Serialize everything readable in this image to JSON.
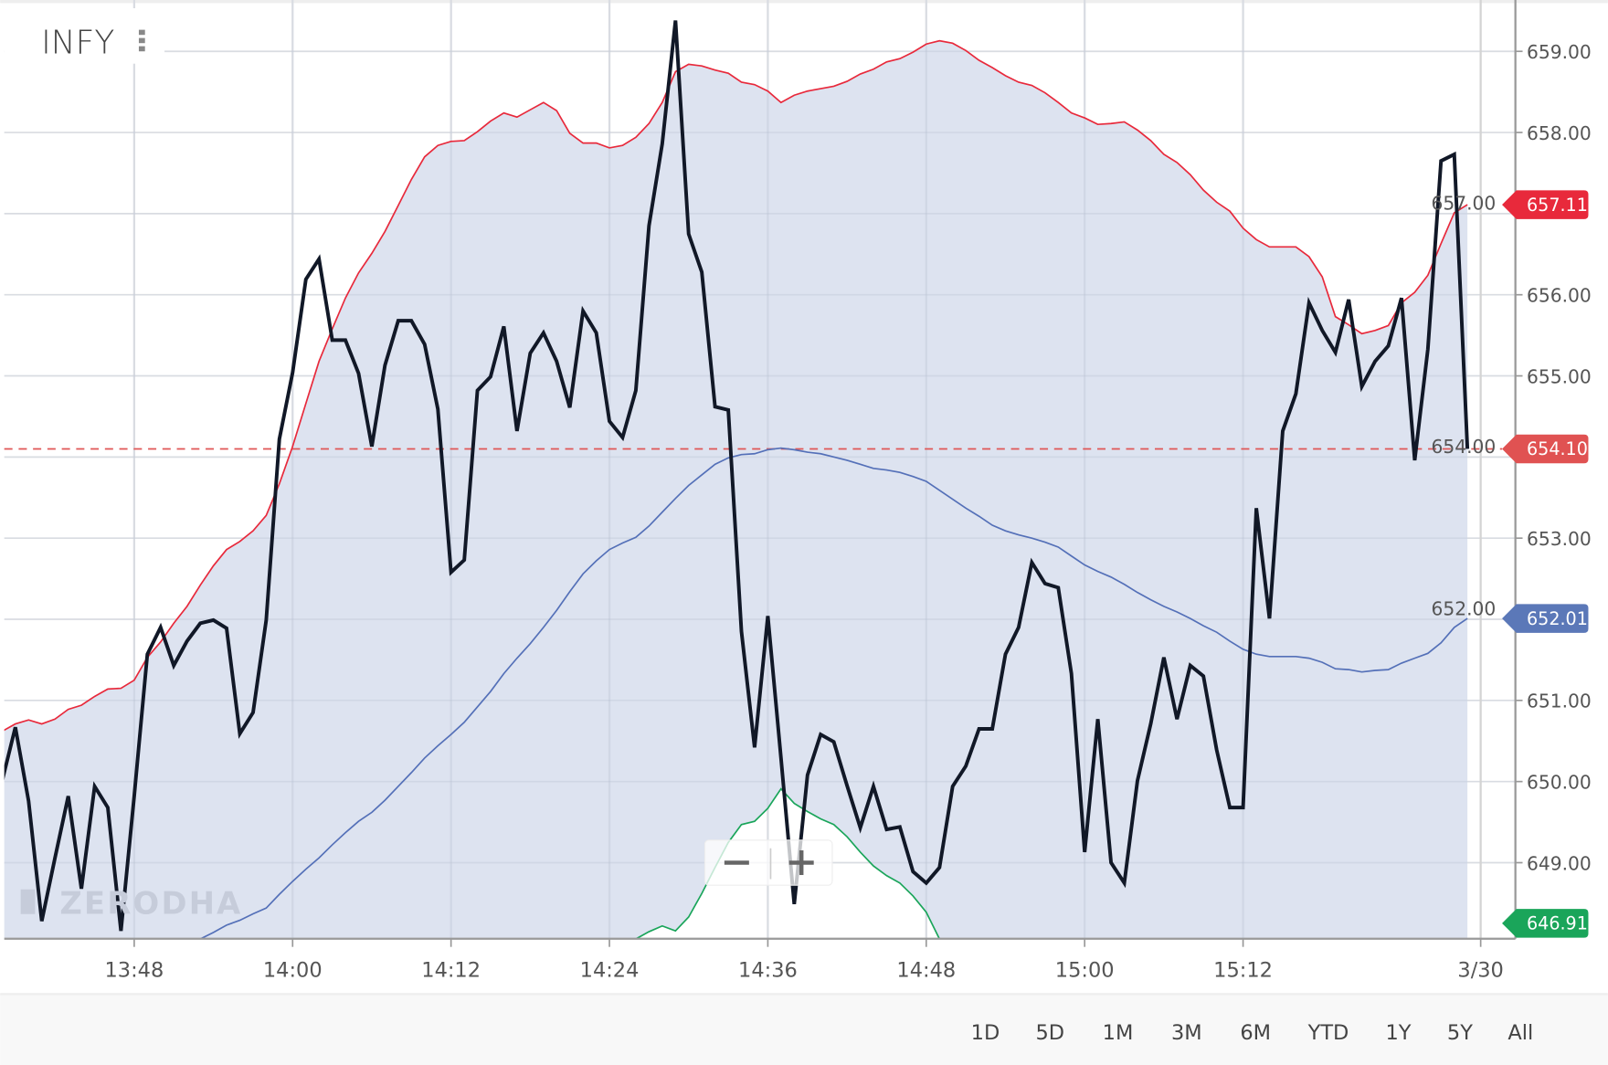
{
  "header": {
    "symbol": "INFY",
    "menu_icon": "vertical-dots-icon"
  },
  "watermark": "ZERODHA",
  "zoom_controls": {
    "zoom_out_icon": "minus-icon",
    "zoom_in_icon": "plus-icon"
  },
  "range_buttons": [
    "1D",
    "5D",
    "1M",
    "3M",
    "6M",
    "YTD",
    "1Y",
    "5Y",
    "All"
  ],
  "chart_data": {
    "type": "line",
    "ylim": [
      648.06,
      659.63
    ],
    "y_ticks": [
      "649.00",
      "650.00",
      "651.00",
      "652.00",
      "653.00",
      "654.00",
      "655.00",
      "656.00",
      "657.00",
      "658.00",
      "659.00"
    ],
    "y_tick_values": [
      649,
      650,
      651,
      652,
      653,
      654,
      655,
      656,
      657,
      658,
      659
    ],
    "x_ticks": [
      "13:48",
      "14:00",
      "14:12",
      "14:24",
      "14:36",
      "14:48",
      "15:00",
      "15:12"
    ],
    "date_tick": "3/30",
    "grid": true,
    "colors": {
      "close": "#111827",
      "upper_band": "#e8293b",
      "middle_band": "#5470b8",
      "lower_band": "#1aa55a",
      "band_fill": "#dde3f0",
      "last_price_line": "#e05656"
    },
    "last_price": 654.1,
    "price_tags": [
      {
        "label": "657.11",
        "value": 657.11,
        "color": "#e8293b"
      },
      {
        "label": "654.10",
        "value": 654.1,
        "color": "#e05252"
      },
      {
        "label": "652.01",
        "value": 652.01,
        "color": "#5b78b8"
      },
      {
        "label": "646.91",
        "value": 646.91,
        "color": "#1aa55a"
      }
    ],
    "times": [
      "13:38",
      "13:39",
      "13:40",
      "13:41",
      "13:42",
      "13:43",
      "13:44",
      "13:45",
      "13:46",
      "13:47",
      "13:48",
      "13:49",
      "13:50",
      "13:51",
      "13:52",
      "13:53",
      "13:54",
      "13:55",
      "13:56",
      "13:57",
      "13:58",
      "13:59",
      "14:00",
      "14:01",
      "14:02",
      "14:03",
      "14:04",
      "14:05",
      "14:06",
      "14:07",
      "14:08",
      "14:09",
      "14:10",
      "14:11",
      "14:12",
      "14:13",
      "14:14",
      "14:15",
      "14:16",
      "14:17",
      "14:18",
      "14:19",
      "14:20",
      "14:21",
      "14:22",
      "14:23",
      "14:24",
      "14:25",
      "14:26",
      "14:27",
      "14:28",
      "14:29",
      "14:30",
      "14:31",
      "14:32",
      "14:33",
      "14:34",
      "14:35",
      "14:36",
      "14:37",
      "14:38",
      "14:39",
      "14:40",
      "14:41",
      "14:42",
      "14:43",
      "14:44",
      "14:45",
      "14:46",
      "14:47",
      "14:48",
      "14:49",
      "14:50",
      "14:51",
      "14:52",
      "14:53",
      "14:54",
      "14:55",
      "14:56",
      "14:57",
      "14:58",
      "14:59",
      "15:00",
      "15:01",
      "15:02",
      "15:03",
      "15:04",
      "15:05",
      "15:06",
      "15:07",
      "15:08",
      "15:09",
      "15:10",
      "15:11",
      "15:12",
      "15:13",
      "15:14",
      "15:15",
      "15:16",
      "15:17",
      "15:18",
      "15:19",
      "15:20",
      "15:21",
      "15:22",
      "15:23",
      "15:24",
      "15:25",
      "15:26",
      "15:27",
      "15:28",
      "15:29"
    ],
    "close": [
      650.01,
      650.67,
      649.76,
      648.28,
      649.06,
      649.82,
      648.68,
      649.94,
      649.68,
      648.16,
      649.82,
      651.57,
      651.9,
      651.43,
      651.73,
      651.95,
      651.99,
      651.89,
      650.59,
      650.85,
      651.99,
      654.22,
      655.04,
      656.19,
      656.44,
      655.44,
      655.44,
      655.03,
      654.13,
      655.13,
      655.68,
      655.68,
      655.39,
      654.59,
      652.58,
      652.73,
      654.82,
      654.99,
      655.61,
      654.32,
      655.28,
      655.53,
      655.18,
      654.61,
      655.8,
      655.53,
      654.44,
      654.24,
      654.82,
      656.85,
      657.86,
      659.38,
      656.75,
      656.28,
      654.62,
      654.58,
      651.85,
      650.42,
      652.04,
      650.29,
      648.49,
      650.08,
      650.58,
      650.49,
      649.95,
      649.43,
      649.94,
      649.41,
      649.44,
      648.89,
      648.75,
      648.94,
      649.94,
      650.19,
      650.65,
      650.65,
      651.57,
      651.9,
      652.7,
      652.44,
      652.39,
      651.33,
      649.13,
      650.77,
      649.0,
      648.75,
      650.01,
      650.71,
      651.53,
      650.77,
      651.43,
      651.3,
      650.39,
      649.68,
      649.68,
      653.37,
      652.01,
      654.32,
      654.78,
      655.9,
      655.56,
      655.29,
      655.94,
      654.87,
      655.18,
      655.37,
      655.96,
      653.96,
      655.33,
      657.65,
      657.73,
      654.1
    ],
    "upper_band": [
      650.62,
      650.71,
      650.76,
      650.71,
      650.77,
      650.89,
      650.94,
      651.05,
      651.14,
      651.15,
      651.25,
      651.53,
      651.72,
      651.95,
      652.16,
      652.42,
      652.66,
      652.86,
      652.96,
      653.09,
      653.28,
      653.67,
      654.13,
      654.66,
      655.18,
      655.58,
      655.96,
      656.27,
      656.51,
      656.78,
      657.1,
      657.42,
      657.7,
      657.84,
      657.89,
      657.9,
      658.01,
      658.14,
      658.24,
      658.19,
      658.28,
      658.37,
      658.27,
      657.99,
      657.87,
      657.87,
      657.81,
      657.84,
      657.94,
      658.11,
      658.37,
      658.75,
      658.84,
      658.82,
      658.77,
      658.73,
      658.62,
      658.59,
      658.51,
      658.37,
      658.46,
      658.51,
      658.54,
      658.57,
      658.63,
      658.72,
      658.78,
      658.87,
      658.91,
      658.99,
      659.09,
      659.13,
      659.1,
      659.01,
      658.89,
      658.8,
      658.7,
      658.62,
      658.58,
      658.49,
      658.37,
      658.24,
      658.18,
      658.1,
      658.11,
      658.13,
      658.03,
      657.9,
      657.73,
      657.63,
      657.48,
      657.29,
      657.14,
      657.03,
      656.82,
      656.68,
      656.59,
      656.59,
      656.59,
      656.47,
      656.22,
      655.73,
      655.63,
      655.52,
      655.56,
      655.62,
      655.9,
      656.03,
      656.24,
      656.63,
      657.01,
      657.11
    ],
    "middle_band": [
      null,
      null,
      null,
      null,
      null,
      null,
      null,
      null,
      null,
      null,
      null,
      null,
      null,
      null,
      null,
      648.06,
      648.14,
      648.23,
      648.29,
      648.37,
      648.44,
      648.61,
      648.77,
      648.92,
      649.06,
      649.22,
      649.37,
      649.51,
      649.62,
      649.77,
      649.94,
      650.11,
      650.29,
      650.44,
      650.58,
      650.73,
      650.92,
      651.11,
      651.33,
      651.52,
      651.7,
      651.9,
      652.11,
      652.34,
      652.56,
      652.72,
      652.86,
      652.94,
      653.01,
      653.15,
      653.32,
      653.49,
      653.65,
      653.78,
      653.91,
      653.99,
      654.03,
      654.04,
      654.09,
      654.11,
      654.09,
      654.06,
      654.04,
      654.0,
      653.96,
      653.91,
      653.86,
      653.84,
      653.81,
      653.76,
      653.7,
      653.59,
      653.48,
      653.37,
      653.27,
      653.16,
      653.09,
      653.04,
      653.0,
      652.95,
      652.89,
      652.78,
      652.67,
      652.59,
      652.52,
      652.43,
      652.33,
      652.24,
      652.16,
      652.09,
      652.01,
      651.92,
      651.84,
      651.73,
      651.63,
      651.57,
      651.54,
      651.54,
      651.54,
      651.52,
      651.47,
      651.39,
      651.38,
      651.35,
      651.37,
      651.38,
      651.46,
      651.52,
      651.58,
      651.71,
      651.9,
      652.01
    ],
    "lower_band": [
      null,
      null,
      null,
      null,
      null,
      null,
      null,
      null,
      null,
      null,
      null,
      null,
      null,
      null,
      null,
      null,
      null,
      null,
      null,
      null,
      null,
      null,
      null,
      null,
      null,
      null,
      null,
      null,
      null,
      null,
      null,
      null,
      null,
      null,
      null,
      null,
      null,
      null,
      null,
      null,
      null,
      null,
      null,
      null,
      null,
      null,
      null,
      null,
      648.06,
      648.15,
      648.22,
      648.16,
      648.33,
      648.62,
      648.94,
      649.25,
      649.47,
      649.51,
      649.67,
      649.91,
      649.73,
      649.63,
      649.54,
      649.47,
      649.32,
      649.13,
      648.96,
      648.84,
      648.75,
      648.59,
      648.39,
      648.06,
      null,
      null,
      null,
      null,
      null,
      null,
      null,
      null,
      null,
      null,
      null,
      null,
      null,
      null,
      null,
      null,
      null,
      null,
      null,
      null,
      null,
      null,
      null,
      null,
      null,
      null,
      null,
      null,
      null,
      null,
      null,
      null,
      null,
      null,
      null,
      null,
      null,
      null,
      null,
      null
    ]
  }
}
